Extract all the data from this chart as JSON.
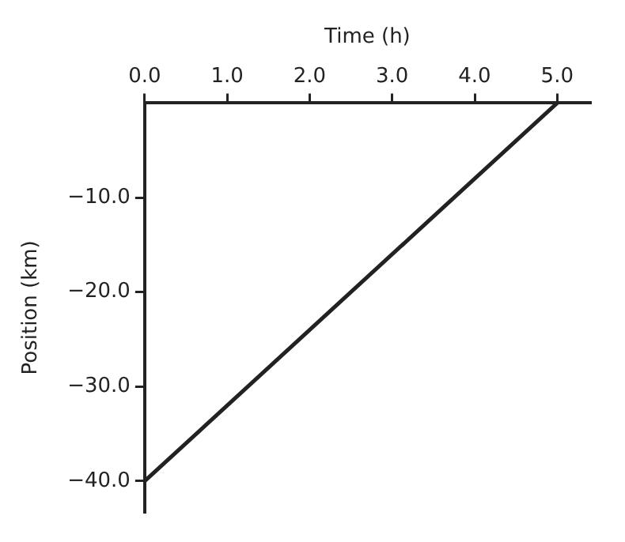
{
  "chart_data": {
    "type": "line",
    "xlabel": "Time (h)",
    "ylabel": "Position (km)",
    "x": [
      0,
      5
    ],
    "series": [
      {
        "color": "#222222",
        "values": [
          -40,
          0
        ]
      }
    ],
    "xlim": [
      0,
      5.4
    ],
    "ylim": [
      -43.3,
      0
    ],
    "xticks": [
      {
        "value": 0,
        "label": "0.0"
      },
      {
        "value": 1,
        "label": "1.0"
      },
      {
        "value": 2,
        "label": "2.0"
      },
      {
        "value": 3,
        "label": "3.0"
      },
      {
        "value": 4,
        "label": "4.0"
      },
      {
        "value": 5,
        "label": "5.0"
      }
    ],
    "yticks": [
      {
        "value": -10,
        "label": "−10.0"
      },
      {
        "value": -20,
        "label": "−20.0"
      },
      {
        "value": -30,
        "label": "−30.0"
      },
      {
        "value": -40,
        "label": "−40.0"
      }
    ],
    "grid": false,
    "legend": false,
    "marker": "none",
    "line_style": "solid"
  }
}
